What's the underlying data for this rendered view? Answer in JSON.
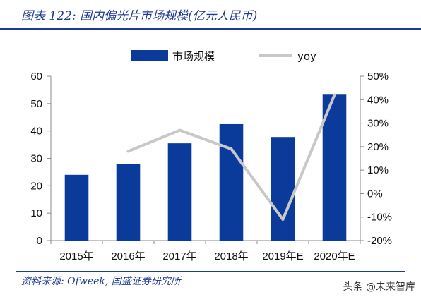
{
  "header": {
    "title": "图表 122:  国内偏光片市场规模(亿元人民币)"
  },
  "footer": {
    "source": "资料来源:  Ofweek,  国盛证券研究所"
  },
  "watermark": "头条 @未来智库",
  "colors": {
    "bar": "#0b3b9a",
    "line": "#c8c8c8",
    "accent": "#1f3a93",
    "axis": "#888888"
  },
  "chart_data": {
    "type": "bar",
    "categories": [
      "2015年",
      "2016年",
      "2017年",
      "2018年",
      "2019年E",
      "2020年E"
    ],
    "series": [
      {
        "name": "市场规模",
        "type": "bar",
        "axis": "left",
        "values": [
          24,
          28,
          35.5,
          42.5,
          37.8,
          53.5
        ]
      },
      {
        "name": "yoy",
        "type": "line",
        "axis": "right",
        "values": [
          null,
          18,
          27,
          19,
          -11,
          42
        ]
      }
    ],
    "ylim": [
      0,
      60
    ],
    "y_ticks": [
      "0",
      "10",
      "20",
      "30",
      "40",
      "50",
      "60"
    ],
    "y2lim": [
      -20,
      50
    ],
    "y2_ticks": [
      "-20%",
      "-10%",
      "0%",
      "10%",
      "20%",
      "30%",
      "40%",
      "50%"
    ],
    "legend_position": "top-center",
    "grid": false
  }
}
